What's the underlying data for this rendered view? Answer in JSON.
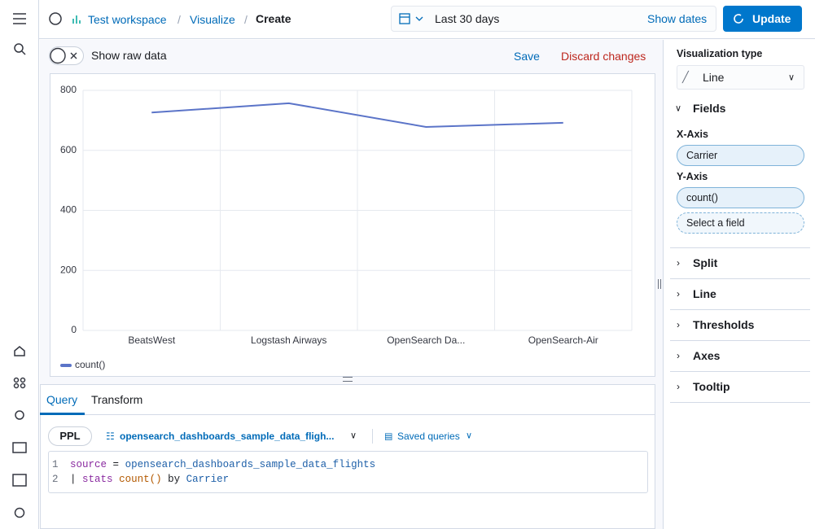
{
  "header": {
    "breadcrumbs": [
      "Test workspace",
      "Visualize",
      "Create"
    ],
    "date_range": "Last 30 days",
    "show_dates": "Show dates",
    "update": "Update"
  },
  "toolbar": {
    "toggle": "Show raw data",
    "save": "Save",
    "discard": "Discard changes"
  },
  "chart_data": {
    "type": "line",
    "categories": [
      "BeatsWest",
      "Logstash Airways",
      "OpenSearch Da...",
      "OpenSearch-Air"
    ],
    "series": [
      {
        "name": "count()",
        "color": "#5b74c8",
        "values": [
          726,
          757,
          678,
          692
        ]
      }
    ],
    "ylim": [
      0,
      800
    ],
    "yticks": [
      0,
      200,
      400,
      600,
      800
    ],
    "grid": true,
    "legend": "bottom-left"
  },
  "query": {
    "tabs": [
      "Query",
      "Transform"
    ],
    "language": "PPL",
    "index": "opensearch_dashboards_sample_data_fligh...",
    "saved_queries": "Saved queries",
    "line_numbers": [
      1,
      2
    ],
    "code": [
      [
        "source",
        "=",
        "opensearch_dashboards_sample_data_flights"
      ],
      [
        "|",
        "stats",
        "count()",
        "by",
        "Carrier"
      ]
    ]
  },
  "panel": {
    "type_label": "Visualization type",
    "type_value": "Line",
    "fields": "Fields",
    "x_axis": "X-Axis",
    "x_field": "Carrier",
    "y_axis": "Y-Axis",
    "y_field": "count()",
    "add_field": "Select a field",
    "sections": [
      "Split",
      "Line",
      "Thresholds",
      "Axes",
      "Tooltip"
    ]
  }
}
